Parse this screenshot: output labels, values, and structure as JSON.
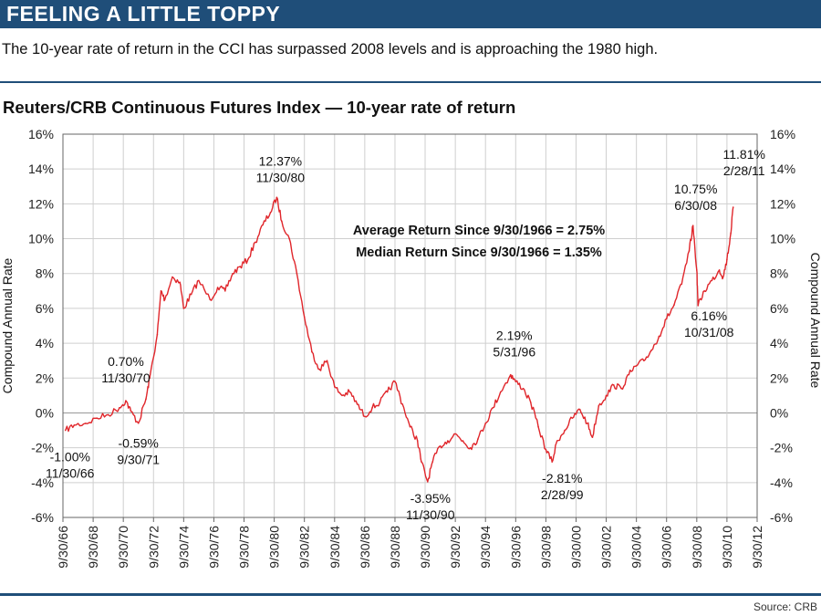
{
  "header": {
    "banner_title": "FEELING A LITTLE TOPPY",
    "subtitle": "The 10-year rate of return in the CCI has surpassed 2008 levels and is approaching the 1980 high.",
    "source": "Source: CRB"
  },
  "colors": {
    "banner": "#1f4e79",
    "series": "#e0262b",
    "grid": "#c8c8c8",
    "zero_line": "#999999"
  },
  "chart_data": {
    "type": "line",
    "title": "Reuters/CRB Continuous Futures Index — 10-year rate of return",
    "ylabel": "Compound Annual Rate",
    "ylabel_right": "Compound Annual Rate",
    "ylim": [
      -6,
      16
    ],
    "yticks": [
      -6,
      -4,
      -2,
      0,
      2,
      4,
      6,
      8,
      10,
      12,
      14,
      16
    ],
    "ytick_labels": [
      "-6%",
      "-4%",
      "-2%",
      "0%",
      "2%",
      "4%",
      "6%",
      "8%",
      "10%",
      "12%",
      "14%",
      "16%"
    ],
    "xlim": [
      "1966-09-30",
      "2012-09-30"
    ],
    "xtick_labels": [
      "9/30/66",
      "9/30/68",
      "9/30/70",
      "9/30/72",
      "9/30/74",
      "9/30/76",
      "9/30/78",
      "9/30/80",
      "9/30/82",
      "9/30/84",
      "9/30/86",
      "9/30/88",
      "9/30/90",
      "9/30/92",
      "9/30/94",
      "9/30/96",
      "9/30/98",
      "9/30/00",
      "9/30/02",
      "9/30/04",
      "9/30/06",
      "9/30/08",
      "9/30/10",
      "9/30/12"
    ],
    "grid": true,
    "series": [
      {
        "points": [
          [
            "1966-11-30",
            -1.0
          ],
          [
            "1967-06-30",
            -0.7
          ],
          [
            "1968-03-31",
            -0.6
          ],
          [
            "1968-12-31",
            -0.3
          ],
          [
            "1969-09-30",
            -0.1
          ],
          [
            "1970-06-30",
            0.3
          ],
          [
            "1970-11-30",
            0.7
          ],
          [
            "1971-03-31",
            0.1
          ],
          [
            "1971-09-30",
            -0.59
          ],
          [
            "1972-03-31",
            0.8
          ],
          [
            "1972-06-30",
            2.0
          ],
          [
            "1972-12-31",
            4.5
          ],
          [
            "1973-03-31",
            7.0
          ],
          [
            "1973-06-30",
            6.5
          ],
          [
            "1973-12-31",
            7.8
          ],
          [
            "1974-06-30",
            7.5
          ],
          [
            "1974-09-30",
            6.0
          ],
          [
            "1975-03-31",
            6.8
          ],
          [
            "1975-09-30",
            7.6
          ],
          [
            "1976-06-30",
            6.5
          ],
          [
            "1976-12-31",
            7.2
          ],
          [
            "1977-06-30",
            7.0
          ],
          [
            "1977-12-31",
            8.0
          ],
          [
            "1978-06-30",
            8.4
          ],
          [
            "1978-12-31",
            8.8
          ],
          [
            "1979-06-30",
            9.8
          ],
          [
            "1979-12-31",
            10.8
          ],
          [
            "1980-06-30",
            11.5
          ],
          [
            "1980-11-30",
            12.37
          ],
          [
            "1981-03-31",
            11.0
          ],
          [
            "1981-09-30",
            10.0
          ],
          [
            "1982-03-31",
            8.0
          ],
          [
            "1982-09-30",
            5.5
          ],
          [
            "1983-03-31",
            3.5
          ],
          [
            "1983-09-30",
            2.5
          ],
          [
            "1984-03-31",
            3.0
          ],
          [
            "1984-09-30",
            1.5
          ],
          [
            "1985-03-31",
            1.0
          ],
          [
            "1985-09-30",
            1.2
          ],
          [
            "1986-03-31",
            0.5
          ],
          [
            "1986-09-30",
            -0.2
          ],
          [
            "1987-03-31",
            0.3
          ],
          [
            "1987-09-30",
            0.6
          ],
          [
            "1988-03-31",
            1.2
          ],
          [
            "1988-09-30",
            1.8
          ],
          [
            "1989-03-31",
            0.5
          ],
          [
            "1989-09-30",
            -0.8
          ],
          [
            "1990-03-31",
            -1.6
          ],
          [
            "1990-06-30",
            -2.8
          ],
          [
            "1990-11-30",
            -3.95
          ],
          [
            "1991-03-31",
            -2.8
          ],
          [
            "1991-09-30",
            -1.9
          ],
          [
            "1992-03-31",
            -1.6
          ],
          [
            "1992-09-30",
            -1.2
          ],
          [
            "1993-03-31",
            -1.6
          ],
          [
            "1993-09-30",
            -2.0
          ],
          [
            "1994-03-31",
            -1.5
          ],
          [
            "1994-09-30",
            -0.6
          ],
          [
            "1995-03-31",
            0.3
          ],
          [
            "1995-09-30",
            1.2
          ],
          [
            "1996-05-31",
            2.19
          ],
          [
            "1996-09-30",
            1.8
          ],
          [
            "1997-03-31",
            1.4
          ],
          [
            "1997-09-30",
            0.6
          ],
          [
            "1998-03-31",
            -0.8
          ],
          [
            "1998-09-30",
            -2.1
          ],
          [
            "1999-02-28",
            -2.81
          ],
          [
            "1999-06-30",
            -1.6
          ],
          [
            "1999-12-31",
            -1.0
          ],
          [
            "2000-06-30",
            -0.3
          ],
          [
            "2000-12-31",
            0.2
          ],
          [
            "2001-06-30",
            -0.6
          ],
          [
            "2001-10-31",
            -1.4
          ],
          [
            "2002-03-31",
            0.4
          ],
          [
            "2002-09-30",
            1.0
          ],
          [
            "2003-03-31",
            1.6
          ],
          [
            "2003-09-30",
            1.4
          ],
          [
            "2004-03-31",
            2.2
          ],
          [
            "2004-09-30",
            2.7
          ],
          [
            "2005-03-31",
            3.0
          ],
          [
            "2005-09-30",
            3.6
          ],
          [
            "2006-03-31",
            4.4
          ],
          [
            "2006-09-30",
            5.4
          ],
          [
            "2007-03-31",
            6.2
          ],
          [
            "2007-09-30",
            7.4
          ],
          [
            "2008-03-31",
            9.3
          ],
          [
            "2008-06-30",
            10.75
          ],
          [
            "2008-09-30",
            8.2
          ],
          [
            "2008-10-31",
            6.16
          ],
          [
            "2009-03-31",
            7.0
          ],
          [
            "2009-09-30",
            7.6
          ],
          [
            "2010-03-31",
            8.2
          ],
          [
            "2010-06-30",
            7.8
          ],
          [
            "2010-09-30",
            8.8
          ],
          [
            "2010-12-31",
            10.3
          ],
          [
            "2011-02-28",
            11.81
          ]
        ]
      }
    ],
    "annotations": [
      {
        "date": "1966-11-30",
        "value": -1.0,
        "label": "-1.00%",
        "date_label": "11/30/66"
      },
      {
        "date": "1970-11-30",
        "value": 0.7,
        "label": "0.70%",
        "date_label": "11/30/70"
      },
      {
        "date": "1971-09-30",
        "value": -0.59,
        "label": "-0.59%",
        "date_label": "9/30/71"
      },
      {
        "date": "1980-11-30",
        "value": 12.37,
        "label": "12.37%",
        "date_label": "11/30/80"
      },
      {
        "date": "1990-11-30",
        "value": -3.95,
        "label": "-3.95%",
        "date_label": "11/30/90"
      },
      {
        "date": "1996-05-31",
        "value": 2.19,
        "label": "2.19%",
        "date_label": "5/31/96"
      },
      {
        "date": "1999-02-28",
        "value": -2.81,
        "label": "-2.81%",
        "date_label": "2/28/99"
      },
      {
        "date": "2008-06-30",
        "value": 10.75,
        "label": "10.75%",
        "date_label": "6/30/08"
      },
      {
        "date": "2008-10-31",
        "value": 6.16,
        "label": "6.16%",
        "date_label": "10/31/08"
      },
      {
        "date": "2011-02-28",
        "value": 11.81,
        "label": "11.81%",
        "date_label": "2/28/11"
      }
    ],
    "stats": [
      "Average Return Since 9/30/1966 = 2.75%",
      "Median Return Since 9/30/1966 = 1.35%"
    ]
  }
}
